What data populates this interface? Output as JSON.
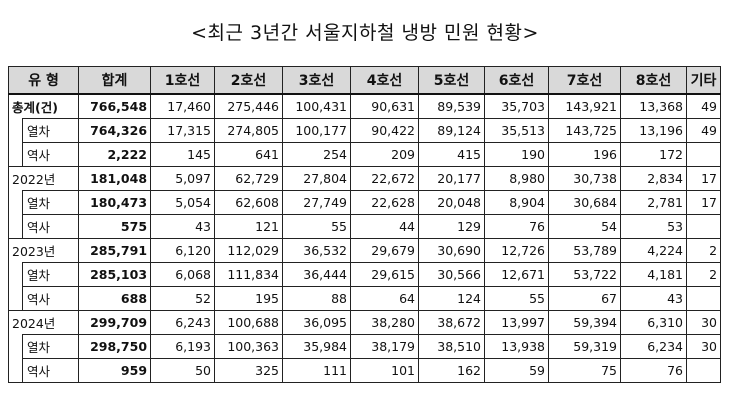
{
  "title": "<최근 3년간 서울지하철 냉방 민원 현황>",
  "headers": [
    "유 형",
    "합계",
    "1호선",
    "2호선",
    "3호선",
    "4호선",
    "5호선",
    "6호선",
    "7호선",
    "8호선",
    "기타"
  ],
  "groups": [
    {
      "label": "총계(건)",
      "values": [
        "766,548",
        "17,460",
        "275,446",
        "100,431",
        "90,631",
        "89,539",
        "35,703",
        "143,921",
        "13,368",
        "49"
      ],
      "subs": [
        {
          "label": "열차",
          "values": [
            "764,326",
            "17,315",
            "274,805",
            "100,177",
            "90,422",
            "89,124",
            "35,513",
            "143,725",
            "13,196",
            "49"
          ]
        },
        {
          "label": "역사",
          "values": [
            "2,222",
            "145",
            "641",
            "254",
            "209",
            "415",
            "190",
            "196",
            "172",
            ""
          ]
        }
      ]
    },
    {
      "label": "2022년",
      "values": [
        "181,048",
        "5,097",
        "62,729",
        "27,804",
        "22,672",
        "20,177",
        "8,980",
        "30,738",
        "2,834",
        "17"
      ],
      "subs": [
        {
          "label": "열차",
          "values": [
            "180,473",
            "5,054",
            "62,608",
            "27,749",
            "22,628",
            "20,048",
            "8,904",
            "30,684",
            "2,781",
            "17"
          ]
        },
        {
          "label": "역사",
          "values": [
            "575",
            "43",
            "121",
            "55",
            "44",
            "129",
            "76",
            "54",
            "53",
            ""
          ]
        }
      ]
    },
    {
      "label": "2023년",
      "values": [
        "285,791",
        "6,120",
        "112,029",
        "36,532",
        "29,679",
        "30,690",
        "12,726",
        "53,789",
        "4,224",
        "2"
      ],
      "subs": [
        {
          "label": "열차",
          "values": [
            "285,103",
            "6,068",
            "111,834",
            "36,444",
            "29,615",
            "30,566",
            "12,671",
            "53,722",
            "4,181",
            "2"
          ]
        },
        {
          "label": "역사",
          "values": [
            "688",
            "52",
            "195",
            "88",
            "64",
            "124",
            "55",
            "67",
            "43",
            ""
          ]
        }
      ]
    },
    {
      "label": "2024년",
      "values": [
        "299,709",
        "6,243",
        "100,688",
        "36,095",
        "38,280",
        "38,672",
        "13,997",
        "59,394",
        "6,310",
        "30"
      ],
      "subs": [
        {
          "label": "열차",
          "values": [
            "298,750",
            "6,193",
            "100,363",
            "35,984",
            "38,179",
            "38,510",
            "13,938",
            "59,319",
            "6,234",
            "30"
          ]
        },
        {
          "label": "역사",
          "values": [
            "959",
            "50",
            "325",
            "111",
            "101",
            "162",
            "59",
            "75",
            "76",
            ""
          ]
        }
      ]
    }
  ]
}
